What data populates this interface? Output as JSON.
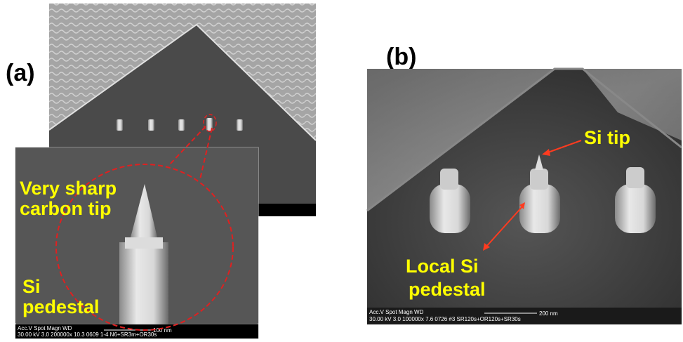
{
  "panel_a": {
    "label": "(a)",
    "annotations": {
      "carbon_tip": [
        "Very sharp",
        "carbon tip"
      ],
      "pedestal": [
        "Si",
        "pedestal"
      ]
    },
    "databar": {
      "header": "Acc.V   Spot  Magn        WD",
      "values": "30.00 kV  3.0  200000x    10.3   0609 1-4 N6+SR3m+OR30s",
      "scale": "100 nm"
    }
  },
  "panel_b": {
    "label": "(b)",
    "annotations": {
      "tip": "Si tip",
      "pedestal": [
        "Local Si",
        "pedestal"
      ]
    },
    "databar": {
      "header": "Acc.V    Spot  Magn         WD",
      "values": "30.00 kV  3.0   100000x     7.6    0726 #3 SR120s+OR120s+SR30s",
      "scale": "200 nm"
    }
  }
}
